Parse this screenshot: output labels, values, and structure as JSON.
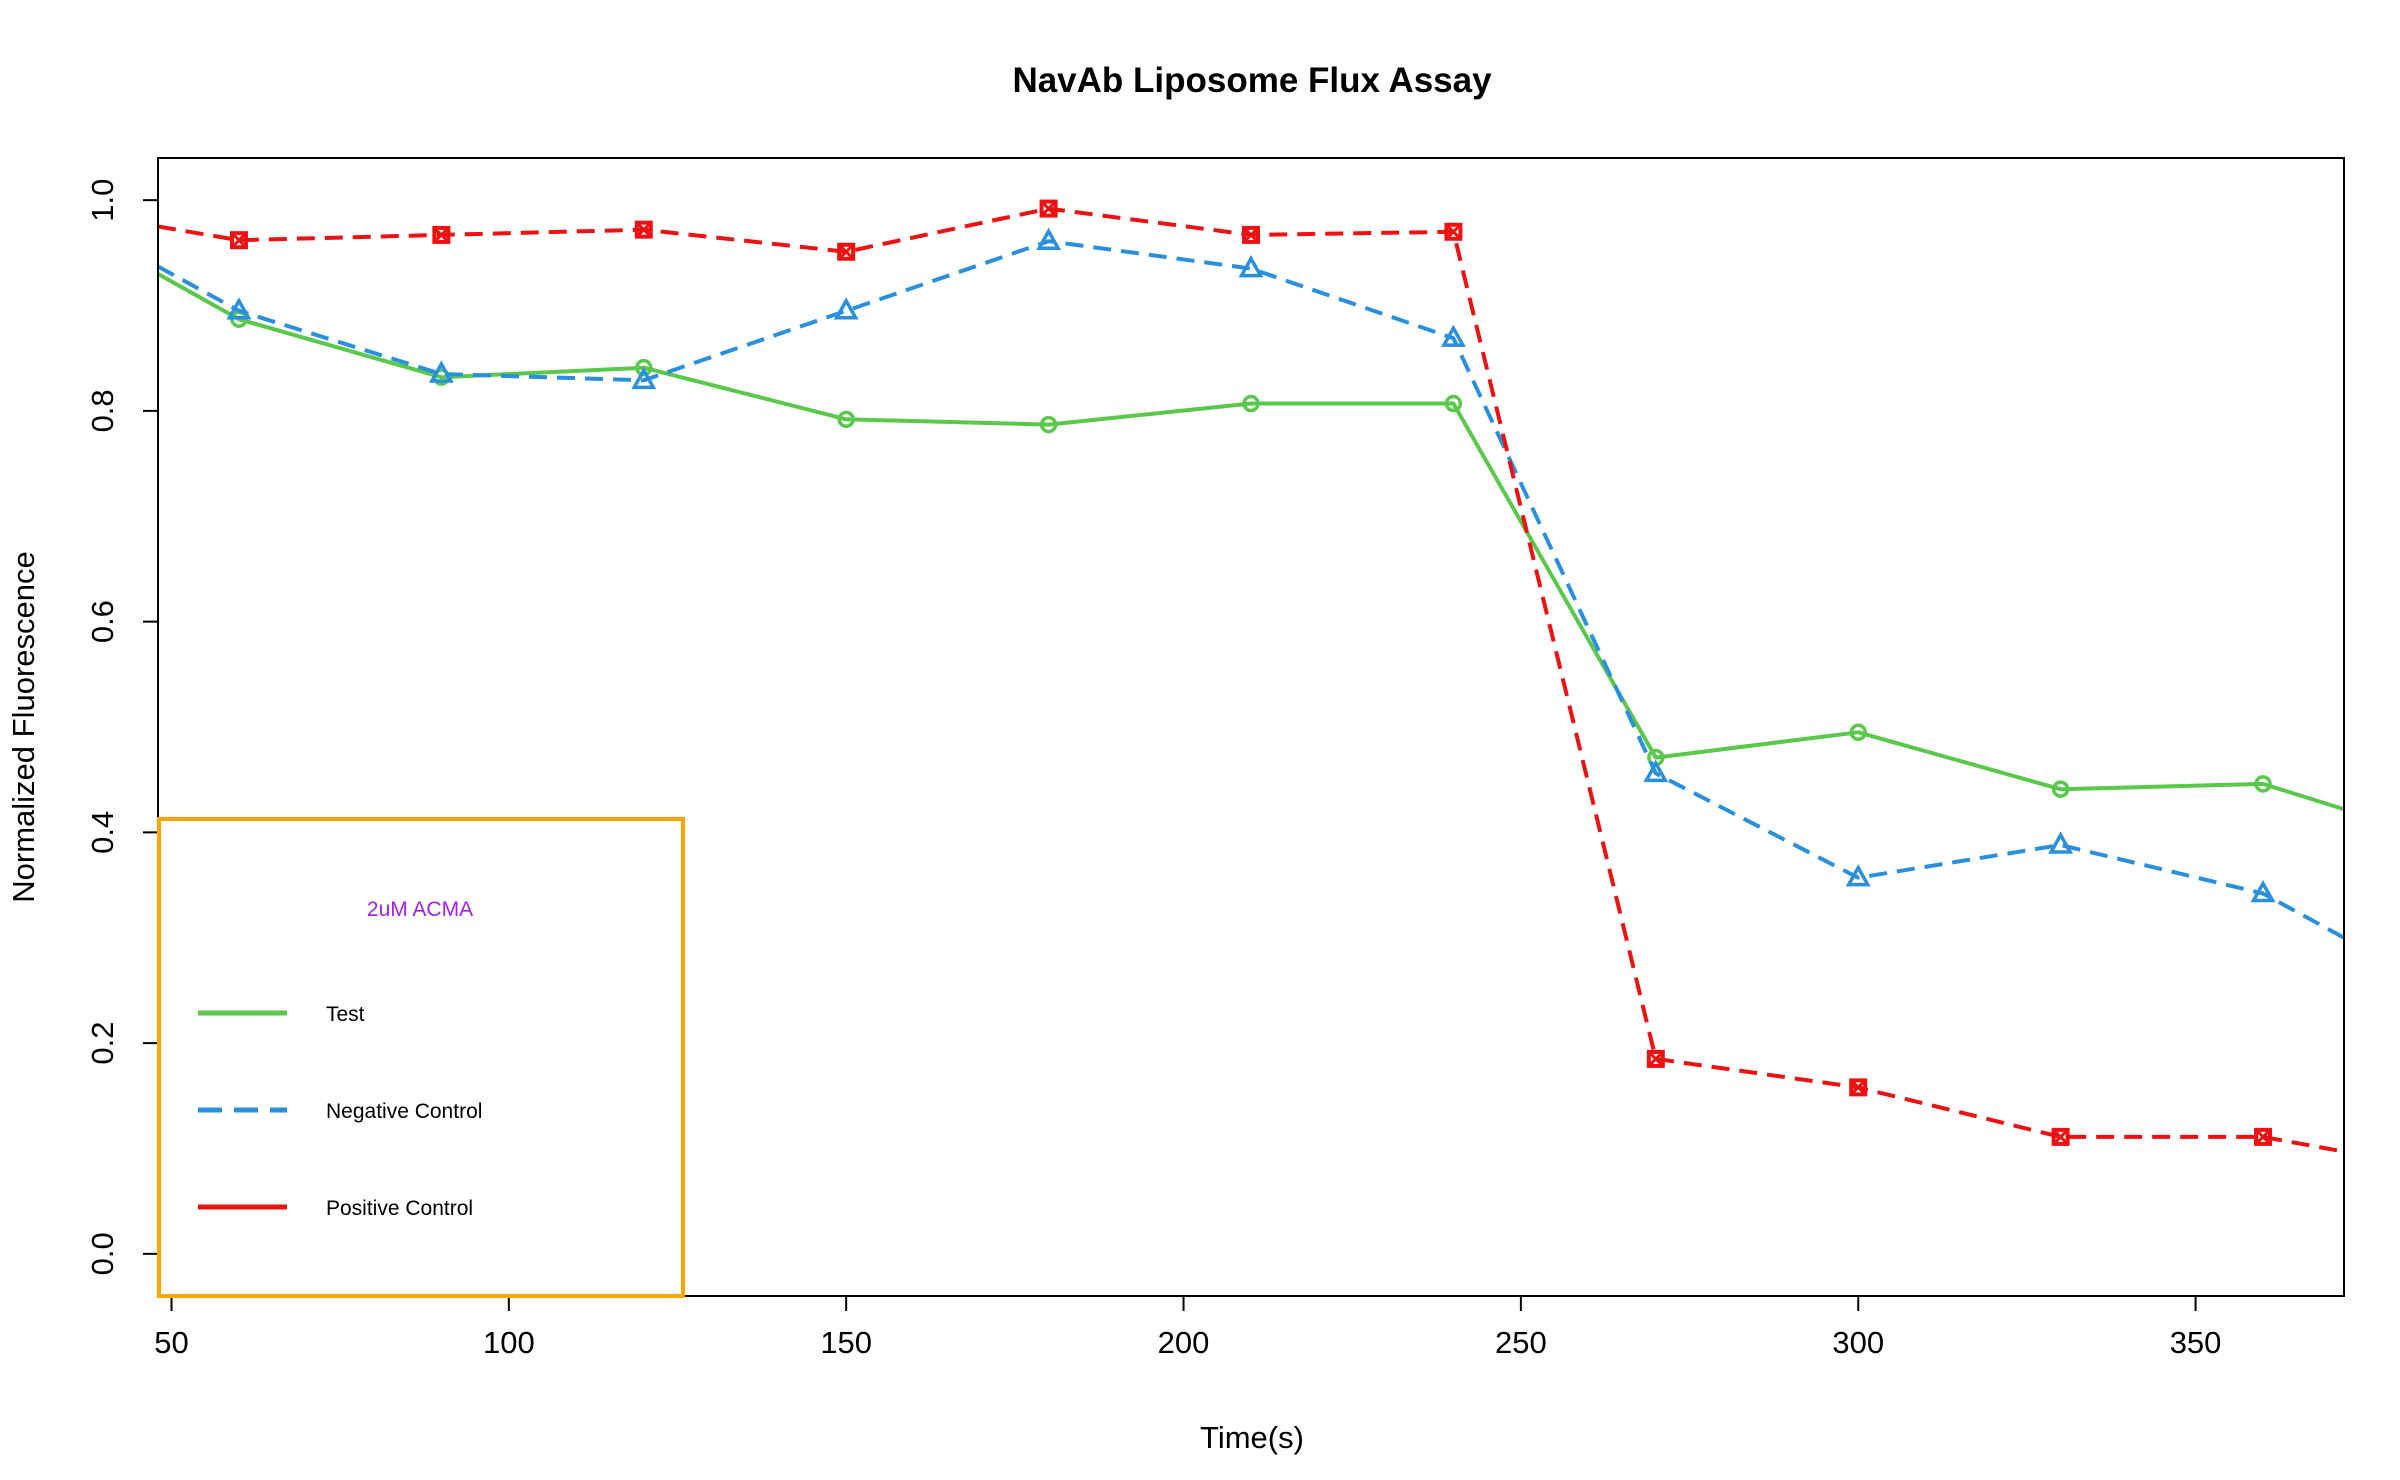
{
  "chart_data": {
    "type": "line",
    "title": "NavAb Liposome Flux Assay",
    "xlabel": "Time(s)",
    "ylabel": "Normalized Fluorescence",
    "xlim": [
      48,
      372
    ],
    "ylim": [
      -0.04,
      1.04
    ],
    "xticks": [
      50,
      100,
      150,
      200,
      250,
      300,
      350
    ],
    "yticks": [
      0.0,
      0.2,
      0.4,
      0.6,
      0.8,
      1.0
    ],
    "grid": false,
    "series": [
      {
        "name": "Test",
        "color": "#5ac84a",
        "dash": "solid",
        "marker": "circle",
        "x": [
          48,
          60,
          90,
          120,
          150,
          180,
          210,
          240,
          270,
          300,
          330,
          360,
          372
        ],
        "y": [
          0.93,
          0.887,
          0.832,
          0.841,
          0.792,
          0.787,
          0.807,
          0.807,
          0.471,
          0.495,
          0.441,
          0.446,
          0.422
        ],
        "marker_indices": [
          1,
          2,
          3,
          4,
          5,
          6,
          7,
          8,
          9,
          10,
          11
        ]
      },
      {
        "name": "Negative Control",
        "color": "#2a8fdc",
        "dash": "dashed",
        "marker": "triangle",
        "x": [
          48,
          60,
          90,
          120,
          150,
          180,
          210,
          240,
          270,
          300,
          330,
          360,
          372
        ],
        "y": [
          0.937,
          0.895,
          0.835,
          0.829,
          0.895,
          0.961,
          0.935,
          0.869,
          0.456,
          0.357,
          0.388,
          0.342,
          0.3
        ],
        "marker_indices": [
          1,
          2,
          3,
          4,
          5,
          6,
          7,
          8,
          9,
          10,
          11
        ]
      },
      {
        "name": "Positive Control",
        "color": "#ee1111",
        "dash": "dashed",
        "marker": "square",
        "x": [
          48,
          60,
          90,
          120,
          150,
          180,
          210,
          240,
          270,
          300,
          330,
          360,
          372
        ],
        "y": [
          0.975,
          0.962,
          0.967,
          0.972,
          0.951,
          0.992,
          0.967,
          0.97,
          0.185,
          0.158,
          0.111,
          0.111,
          0.097
        ],
        "marker_indices": [
          1,
          2,
          3,
          4,
          5,
          6,
          7,
          8,
          9,
          10,
          11
        ]
      }
    ],
    "legend": {
      "title": "2uM ACMA",
      "title_color": "#a020f0",
      "border_color": "#ffa500",
      "placement": "bottom-left",
      "entries": [
        "Test",
        "Negative Control",
        "Positive Control"
      ]
    }
  }
}
